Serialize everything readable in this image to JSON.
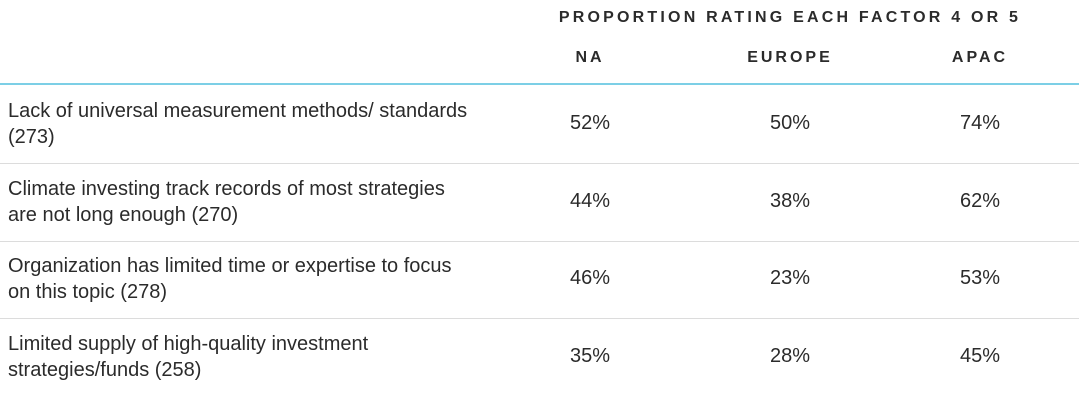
{
  "chart_data": {
    "type": "table",
    "title": "PROPORTION RATING EACH FACTOR 4 OR 5",
    "columns": [
      "NA",
      "EUROPE",
      "APAC"
    ],
    "rows": [
      {
        "label": "Lack of universal measurement methods/ standards (273)",
        "values": [
          "52%",
          "50%",
          "74%"
        ]
      },
      {
        "label": "Climate investing track records of most strategies are not long enough (270)",
        "values": [
          "44%",
          "38%",
          "62%"
        ]
      },
      {
        "label": "Organization has limited time or expertise to focus on this topic (278)",
        "values": [
          "46%",
          "23%",
          "53%"
        ]
      },
      {
        "label": "Limited supply of high-quality investment strategies/funds (258)",
        "values": [
          "35%",
          "28%",
          "45%"
        ]
      }
    ]
  },
  "colors": {
    "accent_rule": "#7ccfe6",
    "row_divider": "#dcdcdc",
    "text": "#2b2b2b"
  }
}
